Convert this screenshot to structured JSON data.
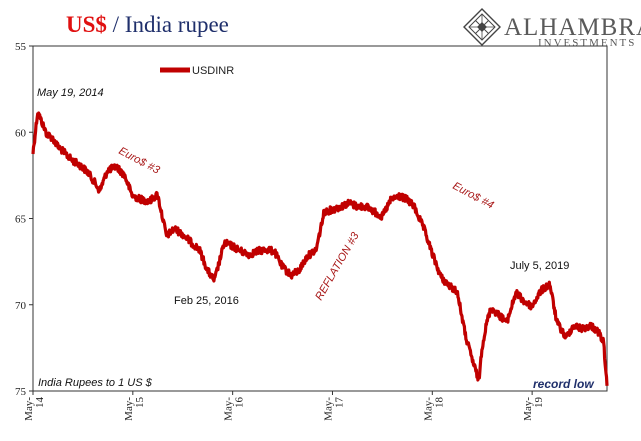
{
  "title": {
    "part1": "US$",
    "part2": " / India rupee"
  },
  "brand": {
    "name": "ALHAMBRA",
    "sub": "INVESTMENTS",
    "logo_icon": "diamond-lattice-icon"
  },
  "colors": {
    "series": "#c00000",
    "title_red": "#e01010",
    "title_blue": "#1f2f6b"
  },
  "chart_data": {
    "type": "line",
    "title": "US$ / India rupee",
    "ylabel": "India Rupees to 1 US $",
    "xlabel": "",
    "y_inverted": true,
    "ylim": [
      55,
      75
    ],
    "yticks": [
      "55",
      "60",
      "65",
      "70",
      "75"
    ],
    "xlim": [
      2014.333,
      2020.083
    ],
    "xticks": [
      {
        "x": 2014.333,
        "line1": "May-",
        "line2": "14"
      },
      {
        "x": 2015.333,
        "line1": "May-",
        "line2": "15"
      },
      {
        "x": 2016.333,
        "line1": "May-",
        "line2": "16"
      },
      {
        "x": 2017.333,
        "line1": "May-",
        "line2": "17"
      },
      {
        "x": 2018.333,
        "line1": "May-",
        "line2": "18"
      },
      {
        "x": 2019.333,
        "line1": "May-",
        "line2": "19"
      }
    ],
    "legend": {
      "label": "USDINR",
      "position": "top-left"
    },
    "grid": false,
    "series": [
      {
        "name": "USDINR",
        "x": [
          2014.333,
          2014.38,
          2014.42,
          2014.47,
          2014.52,
          2014.58,
          2014.65,
          2014.72,
          2014.8,
          2014.88,
          2014.95,
          2015.0,
          2015.08,
          2015.17,
          2015.25,
          2015.33,
          2015.42,
          2015.5,
          2015.58,
          2015.67,
          2015.75,
          2015.83,
          2015.92,
          2016.0,
          2016.08,
          2016.15,
          2016.25,
          2016.33,
          2016.42,
          2016.5,
          2016.58,
          2016.67,
          2016.75,
          2016.83,
          2016.92,
          2017.0,
          2017.08,
          2017.17,
          2017.25,
          2017.33,
          2017.42,
          2017.5,
          2017.58,
          2017.67,
          2017.75,
          2017.83,
          2017.92,
          2018.0,
          2018.08,
          2018.15,
          2018.25,
          2018.33,
          2018.42,
          2018.5,
          2018.58,
          2018.67,
          2018.75,
          2018.8,
          2018.83,
          2018.88,
          2018.92,
          2019.0,
          2019.08,
          2019.17,
          2019.25,
          2019.33,
          2019.42,
          2019.51,
          2019.58,
          2019.67,
          2019.75,
          2019.83,
          2019.92,
          2020.0,
          2020.05,
          2020.083
        ],
        "values": [
          61.2,
          58.8,
          59.4,
          60.1,
          60.3,
          60.8,
          61.2,
          61.6,
          61.9,
          62.3,
          62.9,
          63.4,
          62.2,
          62.0,
          62.5,
          63.7,
          63.9,
          64.0,
          63.6,
          66.0,
          65.6,
          65.9,
          66.4,
          66.8,
          68.0,
          68.6,
          66.4,
          66.6,
          66.9,
          67.1,
          66.9,
          66.8,
          66.9,
          67.8,
          68.3,
          68.0,
          67.2,
          66.8,
          64.6,
          64.5,
          64.3,
          64.1,
          64.3,
          64.3,
          64.6,
          64.9,
          63.9,
          63.7,
          63.9,
          64.3,
          65.6,
          67.0,
          68.4,
          68.9,
          69.2,
          71.9,
          73.5,
          74.4,
          72.5,
          71.0,
          70.2,
          70.6,
          71.0,
          69.3,
          69.8,
          70.1,
          69.2,
          68.8,
          71.0,
          71.9,
          71.2,
          71.4,
          71.2,
          71.6,
          72.2,
          74.7
        ]
      }
    ],
    "annotations": [
      {
        "id": "may-2014",
        "text": "May 19, 2014",
        "style": "italic"
      },
      {
        "id": "euro3",
        "text": "Euro$ #3",
        "style": "red"
      },
      {
        "id": "feb-2016",
        "text": "Feb 25, 2016",
        "style": "plain"
      },
      {
        "id": "reflation3",
        "text": "REFLATION #3",
        "style": "red"
      },
      {
        "id": "euro4",
        "text": "Euro$ #4",
        "style": "red"
      },
      {
        "id": "july-2019",
        "text": "July 5, 2019",
        "style": "plain"
      },
      {
        "id": "record-low",
        "text": "record low",
        "style": "blue"
      }
    ]
  }
}
